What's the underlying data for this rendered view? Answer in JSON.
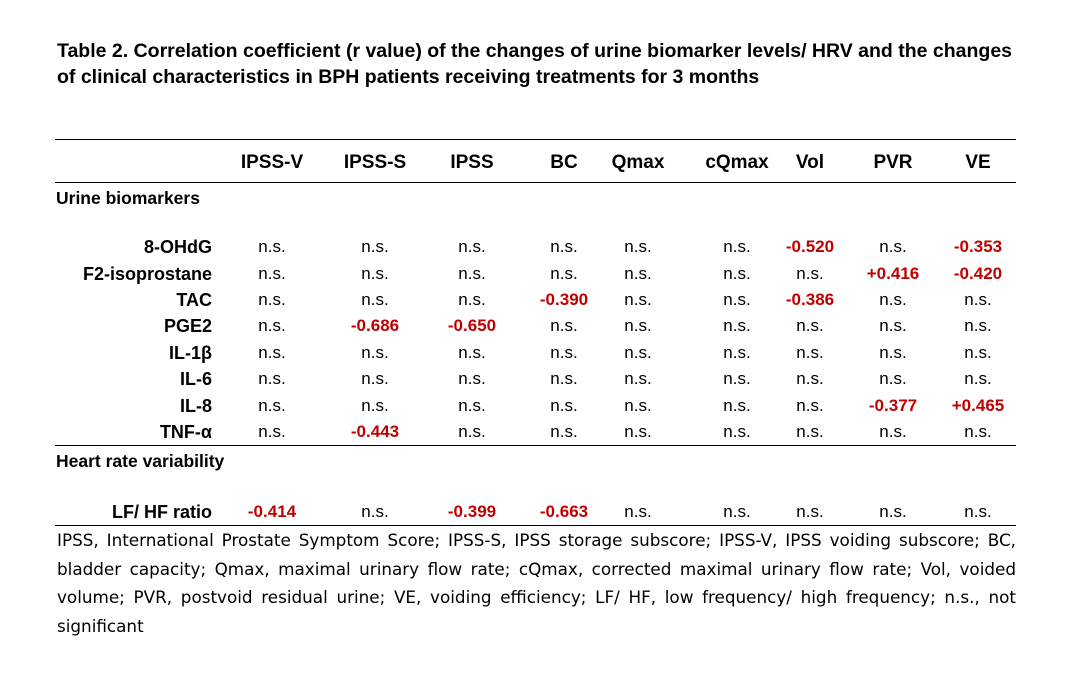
{
  "title": "Table 2. Correlation coefficient (r value) of the changes of urine biomarker levels/ HRV and the changes of clinical characteristics in BPH patients receiving treatments for 3 months",
  "columns": [
    "IPSS-V",
    "IPSS-S",
    "IPSS",
    "BC",
    "Qmax",
    "cQmax",
    "Vol",
    "PVR",
    "VE"
  ],
  "sections": [
    {
      "label": "Urine biomarkers",
      "rows": [
        {
          "name": "8-OHdG",
          "values": [
            "n.s.",
            "n.s.",
            "n.s.",
            "n.s.",
            "n.s.",
            "n.s.",
            "-0.520",
            "n.s.",
            "-0.353"
          ]
        },
        {
          "name": "F2-isoprostane",
          "values": [
            "n.s.",
            "n.s.",
            "n.s.",
            "n.s.",
            "n.s.",
            "n.s.",
            "n.s.",
            "+0.416",
            "-0.420"
          ]
        },
        {
          "name": "TAC",
          "values": [
            "n.s.",
            "n.s.",
            "n.s.",
            "-0.390",
            "n.s.",
            "n.s.",
            "-0.386",
            "n.s.",
            "n.s."
          ]
        },
        {
          "name": "PGE2",
          "values": [
            "n.s.",
            "-0.686",
            "-0.650",
            "n.s.",
            "n.s.",
            "n.s.",
            "n.s.",
            "n.s.",
            "n.s."
          ]
        },
        {
          "name": "IL-1β",
          "values": [
            "n.s.",
            "n.s.",
            "n.s.",
            "n.s.",
            "n.s.",
            "n.s.",
            "n.s.",
            "n.s.",
            "n.s."
          ]
        },
        {
          "name": "IL-6",
          "values": [
            "n.s.",
            "n.s.",
            "n.s.",
            "n.s.",
            "n.s.",
            "n.s.",
            "n.s.",
            "n.s.",
            "n.s."
          ]
        },
        {
          "name": "IL-8",
          "values": [
            "n.s.",
            "n.s.",
            "n.s.",
            "n.s.",
            "n.s.",
            "n.s.",
            "n.s.",
            "-0.377",
            "+0.465"
          ]
        },
        {
          "name": "TNF-α",
          "values": [
            "n.s.",
            "-0.443",
            "n.s.",
            "n.s.",
            "n.s.",
            "n.s.",
            "n.s.",
            "n.s.",
            "n.s."
          ]
        }
      ]
    },
    {
      "label": "Heart rate variability",
      "rows": [
        {
          "name": "LF/ HF ratio",
          "values": [
            "-0.414",
            "n.s.",
            "-0.399",
            "-0.663",
            "n.s.",
            "n.s.",
            "n.s.",
            "n.s.",
            "n.s."
          ]
        }
      ]
    }
  ],
  "significant_color": "#c00000",
  "footnote": "IPSS, International Prostate Symptom Score; IPSS-S, IPSS storage subscore; IPSS-V, IPSS voiding subscore; BC, bladder capacity; Qmax, maximal urinary flow rate; cQmax, corrected maximal urinary flow rate; Vol, voided volume; PVR, postvoid residual urine; VE, voiding efficiency; LF/ HF, low frequency/ high frequency; n.s., not significant"
}
